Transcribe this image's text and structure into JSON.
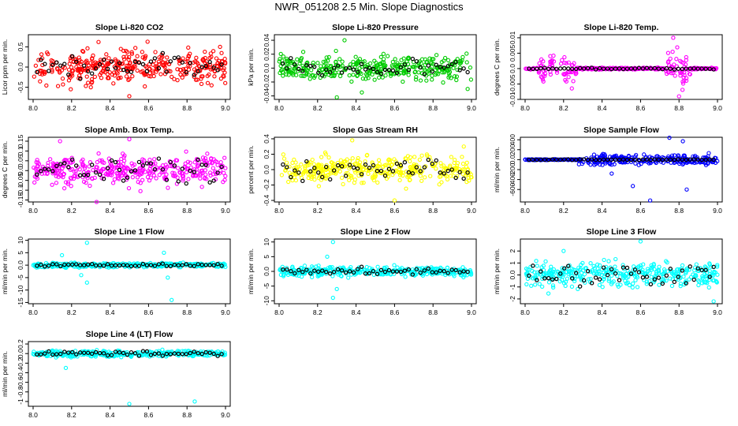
{
  "figure": {
    "title": "NWR_051208  2.5 Min. Slope Diagnostics"
  },
  "colors": {
    "red": "#ff0000",
    "green": "#00cc00",
    "magenta": "#ff00ff",
    "yellow": "#ffff00",
    "blue": "#0000ff",
    "cyan": "#00ffff",
    "black": "#000000"
  },
  "chart_data": [
    {
      "type": "scatter",
      "title": "Slope Li-820 CO2",
      "ylabel": "Licor ppm per min.",
      "color": "red",
      "x_range": [
        8.0,
        9.0
      ],
      "ylim": [
        -0.8,
        0.8
      ],
      "xticks": [
        "8.0",
        "8.2",
        "8.4",
        "8.6",
        "8.8",
        "9.0"
      ],
      "yticks": [
        -0.5,
        0.0,
        0.5
      ],
      "spread": 0.3,
      "seed": 11,
      "outliers": [
        [
          8.34,
          0.62
        ],
        [
          8.5,
          -0.72
        ],
        [
          8.3,
          -0.5
        ]
      ]
    },
    {
      "type": "scatter",
      "title": "Slope Li-820 Pressure",
      "ylabel": "kPa per min.",
      "color": "green",
      "x_range": [
        8.0,
        9.0
      ],
      "ylim": [
        -0.045,
        0.048
      ],
      "xticks": [
        "8.0",
        "8.2",
        "8.4",
        "8.6",
        "8.8",
        "9.0"
      ],
      "yticks": [
        -0.04,
        -0.02,
        0.0,
        0.02,
        0.04
      ],
      "spread": 0.012,
      "seed": 23,
      "outliers": [
        [
          8.34,
          0.04
        ],
        [
          8.3,
          -0.042
        ],
        [
          8.98,
          -0.03
        ],
        [
          8.43,
          -0.035
        ]
      ]
    },
    {
      "type": "scatter",
      "title": "Slope Li-820 Temp.",
      "ylabel": "degrees C per min.",
      "color": "magenta",
      "x_range": [
        8.0,
        9.0
      ],
      "ylim": [
        -0.01,
        0.011
      ],
      "xticks": [
        "8.0",
        "8.2",
        "8.4",
        "8.6",
        "8.8",
        "9.0"
      ],
      "yticks": [
        -0.01,
        -0.005,
        0.0,
        0.005,
        0.01
      ],
      "spread": 0.0002,
      "seed": 37,
      "bursts": [
        {
          "x0": 8.05,
          "x1": 8.27,
          "s": 0.003
        },
        {
          "x0": 8.73,
          "x1": 8.86,
          "s": 0.004
        }
      ],
      "outliers": [
        [
          8.77,
          0.01
        ],
        [
          8.8,
          -0.009
        ]
      ]
    },
    {
      "type": "scatter",
      "title": "Slope Amb. Box Temp.",
      "ylabel": "degrees C per min.",
      "color": "magenta",
      "x_range": [
        8.0,
        9.0
      ],
      "ylim": [
        -0.16,
        0.17
      ],
      "xticks": [
        "8.0",
        "8.2",
        "8.4",
        "8.6",
        "8.8",
        "9.0"
      ],
      "yticks": [
        -0.15,
        -0.1,
        -0.05,
        0.0,
        0.05,
        0.1,
        0.15
      ],
      "spread": 0.05,
      "seed": 41,
      "outliers": [
        [
          8.14,
          0.15
        ],
        [
          8.33,
          -0.16
        ],
        [
          8.5,
          0.16
        ]
      ]
    },
    {
      "type": "scatter",
      "title": "Slope Gas Stream RH",
      "ylabel": "percent per min.",
      "color": "yellow",
      "x_range": [
        8.0,
        9.0
      ],
      "ylim": [
        -0.42,
        0.42
      ],
      "xticks": [
        "8.0",
        "8.2",
        "8.4",
        "8.6",
        "8.8",
        "9.0"
      ],
      "yticks": [
        -0.4,
        -0.2,
        0.0,
        0.2,
        0.4
      ],
      "spread": 0.12,
      "seed": 53,
      "outliers": [
        [
          8.38,
          0.38
        ],
        [
          8.6,
          -0.4
        ],
        [
          8.96,
          0.3
        ]
      ]
    },
    {
      "type": "scatter",
      "title": "Slope Sample Flow",
      "ylabel": "ml/min per min.",
      "color": "blue",
      "x_range": [
        8.0,
        9.0
      ],
      "ylim": [
        -850,
        450
      ],
      "xticks": [
        "8.0",
        "8.2",
        "8.4",
        "8.6",
        "8.8",
        "9.0"
      ],
      "yticks": [
        -600,
        -400,
        -200,
        0,
        200,
        400
      ],
      "spread": 6,
      "seed": 67,
      "bursts": [
        {
          "x0": 8.28,
          "x1": 9.0,
          "s": 70
        }
      ],
      "outliers": [
        [
          8.75,
          440
        ],
        [
          8.82,
          370
        ],
        [
          8.65,
          -820
        ],
        [
          8.84,
          -600
        ],
        [
          8.45,
          -280
        ],
        [
          8.56,
          -530
        ]
      ]
    },
    {
      "type": "scatter",
      "title": "Slope Line 1 Flow",
      "ylabel": "ml/min per min.",
      "color": "cyan",
      "x_range": [
        8.0,
        9.0
      ],
      "ylim": [
        -15.5,
        10.5
      ],
      "xticks": [
        "8.0",
        "8.2",
        "8.4",
        "8.6",
        "8.8",
        "9.0"
      ],
      "yticks": [
        -15,
        -10,
        -5,
        0,
        5,
        10
      ],
      "spread": 0.6,
      "seed": 71,
      "outliers": [
        [
          8.28,
          9
        ],
        [
          8.15,
          4
        ],
        [
          8.25,
          -4
        ],
        [
          8.28,
          -7
        ],
        [
          8.68,
          5
        ],
        [
          8.7,
          -5
        ],
        [
          8.72,
          -14
        ]
      ]
    },
    {
      "type": "scatter",
      "title": "Slope Line 2 Flow",
      "ylabel": "ml/min per min.",
      "color": "cyan",
      "x_range": [
        8.0,
        9.0
      ],
      "ylim": [
        -11,
        11
      ],
      "xticks": [
        "8.0",
        "8.2",
        "8.4",
        "8.6",
        "8.8",
        "9.0"
      ],
      "yticks": [
        -10,
        -5,
        0,
        5,
        10
      ],
      "spread": 1.1,
      "seed": 83,
      "outliers": [
        [
          8.28,
          10
        ],
        [
          8.28,
          -9
        ],
        [
          8.3,
          -6
        ],
        [
          8.25,
          5
        ]
      ]
    },
    {
      "type": "scatter",
      "title": "Slope Line 3 Flow",
      "ylabel": "ml/min per min.",
      "color": "cyan",
      "x_range": [
        8.0,
        9.0
      ],
      "ylim": [
        -2.4,
        3.0
      ],
      "xticks": [
        "8.0",
        "8.2",
        "8.4",
        "8.6",
        "8.8",
        "9.0"
      ],
      "yticks": [
        -2,
        -1,
        0,
        1,
        2
      ],
      "spread": 0.7,
      "seed": 97,
      "outliers": [
        [
          8.6,
          2.8
        ],
        [
          8.98,
          -2.2
        ],
        [
          8.2,
          2.0
        ]
      ]
    },
    {
      "type": "scatter",
      "title": "Slope Line 4 (LT) Flow",
      "ylabel": "ml/min per min.",
      "color": "cyan",
      "x_range": [
        8.0,
        9.0
      ],
      "ylim": [
        -1.1,
        0.25
      ],
      "xticks": [
        "8.0",
        "8.2",
        "8.4",
        "8.6",
        "8.8",
        "9.0"
      ],
      "yticks": [
        -1.0,
        -0.8,
        -0.6,
        -0.4,
        -0.2,
        0.0,
        0.2
      ],
      "spread": 0.045,
      "seed": 101,
      "outliers": [
        [
          8.17,
          -0.3
        ],
        [
          8.5,
          -1.05
        ],
        [
          8.84,
          -1.0
        ]
      ]
    }
  ]
}
